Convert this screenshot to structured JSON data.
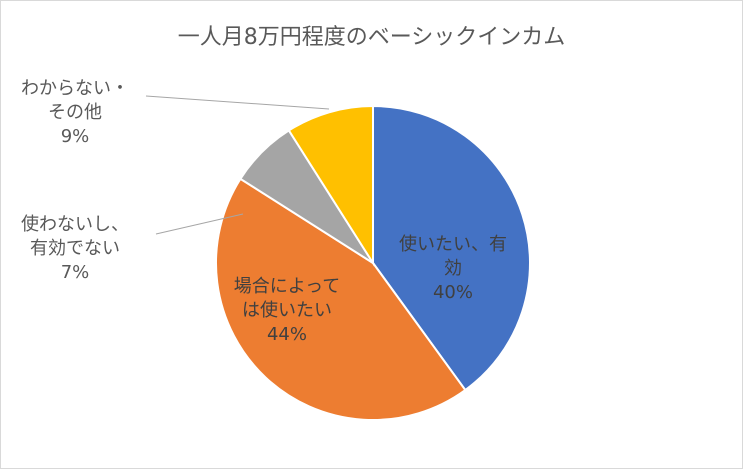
{
  "chart_data": {
    "type": "pie",
    "title": "一人月8万円程度のベーシックインカム",
    "categories": [
      "使いたい、有効",
      "場合によっては使いたい",
      "使わないし、有効でない",
      "わからない・その他"
    ],
    "values": [
      40,
      44,
      7,
      9
    ],
    "value_labels": [
      "40%",
      "44%",
      "7%",
      "9%"
    ],
    "colors": [
      "#4472c4",
      "#ed7d31",
      "#a5a5a5",
      "#ffc000"
    ]
  }
}
